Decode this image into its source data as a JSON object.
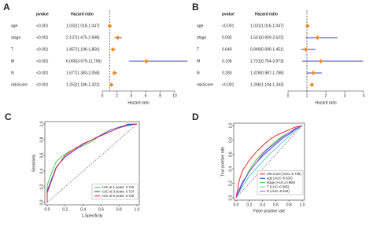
{
  "chart_data": [
    {
      "type": "forest",
      "label": "A",
      "pvalue_header": "pvalue",
      "hr_header": "Hazard ratio",
      "x_label": "Hazard ratio",
      "categories": [
        "age",
        "stage",
        "T",
        "M",
        "N",
        "riskScore"
      ],
      "pvalue_labels": [
        "<0.001",
        "<0.001",
        "<0.001",
        "<0.001",
        "<0.001",
        "<0.001"
      ],
      "hr_labels": [
        "1.032(1.018-1.047)",
        "2.137(1.675-2.698)",
        "1.457(1.196-1.856)",
        "6.066(3.679-11.756)",
        "1.677(1.383-2.058)",
        "1.252(1.186-1.322)"
      ],
      "values": [
        1.032,
        2.137,
        1.457,
        6.066,
        1.677,
        1.252
      ],
      "lower": [
        1.018,
        1.675,
        1.196,
        3.679,
        1.383,
        1.186
      ],
      "upper": [
        1.047,
        2.698,
        1.856,
        11.756,
        2.058,
        1.322
      ],
      "color": "#f08a24",
      "ci_color": "#2f3fbf",
      "reference": 1,
      "xlim": [
        0,
        10
      ],
      "xticks": [
        0,
        2,
        4,
        6,
        8,
        10
      ]
    },
    {
      "type": "forest",
      "label": "B",
      "pvalue_header": "pvalue",
      "hr_header": "Hazard ratio",
      "x_label": "Hazard ratio",
      "categories": [
        "age",
        "stage",
        "T",
        "M",
        "N",
        "riskScore"
      ],
      "pvalue_labels": [
        "<0.001",
        "0.092",
        "0.640",
        "0.196",
        "0.283",
        "<0.001"
      ],
      "hr_labels": [
        "1.031(1.016-1.047)",
        "1.561(0.929-2.622)",
        "0.940(0.690-1.451)",
        "1.731(0.754-3.973)",
        "1.329(0.987-1.788)",
        "1.266(1.194-1.343)"
      ],
      "values": [
        1.031,
        1.561,
        0.94,
        1.731,
        1.329,
        1.266
      ],
      "lower": [
        1.016,
        0.929,
        0.69,
        0.754,
        0.987,
        1.194
      ],
      "upper": [
        1.047,
        2.622,
        1.451,
        3.973,
        1.788,
        1.343
      ],
      "color": "#f08a24",
      "ci_color": "#2f3fbf",
      "reference": 1,
      "xlim": [
        0,
        4
      ],
      "xticks": [
        0,
        1,
        2,
        3,
        4
      ]
    },
    {
      "type": "roc",
      "label": "C",
      "x_label": "1-Specificity",
      "y_label": "Sensitivity",
      "xlim": [
        0,
        1
      ],
      "ylim": [
        0,
        1
      ],
      "xticks": [
        {
          "value": 0,
          "label": "0.0"
        },
        0.2,
        0.4,
        0.6,
        0.8,
        {
          "value": 1,
          "label": "1.0"
        }
      ],
      "yticks": [
        {
          "value": 0,
          "label": "0.0"
        },
        0.2,
        0.4,
        0.6,
        0.8,
        {
          "value": 1,
          "label": "1.0"
        }
      ],
      "series": [
        {
          "name": "AUC at 1 years: 0.715",
          "color": "#33cc33",
          "x": [
            0,
            0,
            0.05,
            0.1,
            0.2,
            0.3,
            0.4,
            0.5,
            0.6,
            0.7,
            0.8,
            0.9,
            1
          ],
          "values": [
            0,
            0.22,
            0.38,
            0.52,
            0.62,
            0.68,
            0.72,
            0.78,
            0.86,
            0.9,
            0.95,
            1,
            1
          ]
        },
        {
          "name": "AUC at 3 years: 0.724",
          "color": "#3333ff",
          "x": [
            0,
            0,
            0.05,
            0.1,
            0.2,
            0.3,
            0.4,
            0.5,
            0.6,
            0.7,
            0.8,
            0.9,
            1
          ],
          "values": [
            0,
            0.15,
            0.3,
            0.45,
            0.58,
            0.66,
            0.74,
            0.8,
            0.86,
            0.92,
            0.96,
            0.99,
            1
          ]
        },
        {
          "name": "AUC at 5 years: 0.726",
          "color": "#ee2222",
          "x": [
            0,
            0,
            0.05,
            0.1,
            0.2,
            0.3,
            0.4,
            0.5,
            0.6,
            0.7,
            0.8,
            0.9,
            1
          ],
          "values": [
            0,
            0.12,
            0.28,
            0.44,
            0.6,
            0.68,
            0.75,
            0.8,
            0.85,
            0.9,
            0.95,
            0.98,
            1
          ]
        }
      ]
    },
    {
      "type": "roc",
      "label": "D",
      "x_label": "False positive rate",
      "y_label": "True positive rate",
      "xlim": [
        0,
        1
      ],
      "ylim": [
        0,
        1
      ],
      "xticks": [
        {
          "value": 0,
          "label": "0.0"
        },
        0.2,
        0.4,
        0.6,
        0.8,
        {
          "value": 1,
          "label": "1.0"
        }
      ],
      "yticks": [
        {
          "value": 0,
          "label": "0.0"
        },
        0.2,
        0.4,
        0.6,
        0.8,
        {
          "value": 1,
          "label": "1.0"
        }
      ],
      "series": [
        {
          "name": "risk score (AUC=0.726)",
          "color": "#ee1111",
          "x": [
            0,
            0.05,
            0.1,
            0.2,
            0.3,
            0.4,
            0.5,
            0.6,
            0.7,
            0.8,
            0.9,
            1
          ],
          "values": [
            0,
            0.25,
            0.38,
            0.52,
            0.63,
            0.72,
            0.8,
            0.86,
            0.9,
            0.94,
            0.98,
            1
          ]
        },
        {
          "name": "age (AUC=0.633)",
          "color": "#2233ee",
          "x": [
            0,
            0.05,
            0.1,
            0.2,
            0.3,
            0.4,
            0.5,
            0.6,
            0.7,
            0.8,
            0.9,
            1
          ],
          "values": [
            0,
            0.12,
            0.22,
            0.36,
            0.48,
            0.58,
            0.66,
            0.74,
            0.82,
            0.88,
            0.95,
            1
          ]
        },
        {
          "name": "stage (AUC=0.659)",
          "color": "#22bb22",
          "x": [
            0,
            0.05,
            0.1,
            0.2,
            0.3,
            0.4,
            0.5,
            0.6,
            0.7,
            0.8,
            0.9,
            1
          ],
          "values": [
            0,
            0.1,
            0.2,
            0.38,
            0.52,
            0.62,
            0.7,
            0.78,
            0.85,
            0.9,
            0.96,
            1
          ]
        },
        {
          "name": "T (AUC=0.595)",
          "color": "#33cccc",
          "x": [
            0,
            0.05,
            0.1,
            0.2,
            0.3,
            0.4,
            0.5,
            0.6,
            0.7,
            0.8,
            0.9,
            1
          ],
          "values": [
            0,
            0.08,
            0.16,
            0.3,
            0.4,
            0.5,
            0.6,
            0.68,
            0.77,
            0.85,
            0.93,
            1
          ]
        },
        {
          "name": "N (AUC=0.643)",
          "color": "#aa44cc",
          "x": [
            0,
            0.05,
            0.1,
            0.2,
            0.3,
            0.4,
            0.5,
            0.6,
            0.7,
            0.8,
            0.9,
            1
          ],
          "values": [
            0,
            0.1,
            0.2,
            0.36,
            0.48,
            0.6,
            0.69,
            0.76,
            0.84,
            0.9,
            0.96,
            1
          ]
        }
      ]
    }
  ]
}
